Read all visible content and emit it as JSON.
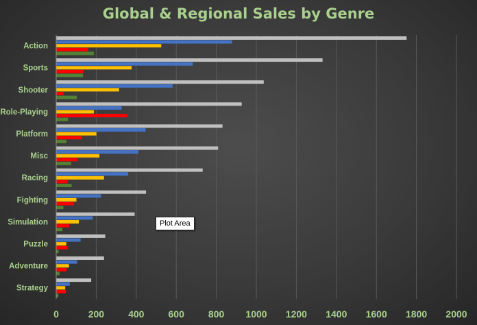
{
  "chart_data": {
    "type": "bar",
    "orientation": "horizontal",
    "title": "Global & Regional Sales by Genre",
    "categories": [
      "Action",
      "Sports",
      "Shooter",
      "Role-Playing",
      "Platform",
      "Misc",
      "Racing",
      "Fighting",
      "Simulation",
      "Puzzle",
      "Adventure",
      "Strategy"
    ],
    "series": [
      {
        "color": "#c0c0c0",
        "values": [
          1751,
          1331,
          1037,
          927,
          831,
          809,
          732,
          449,
          392,
          245,
          239,
          175
        ]
      },
      {
        "color": "#4472c4",
        "values": [
          879,
          683,
          582,
          327,
          447,
          411,
          360,
          224,
          183,
          122,
          105,
          68
        ]
      },
      {
        "color": "#ffc000",
        "values": [
          525,
          377,
          314,
          188,
          201,
          216,
          239,
          101,
          113,
          50,
          64,
          45
        ]
      },
      {
        "color": "#ff0000",
        "values": [
          160,
          136,
          38,
          355,
          130,
          107,
          57,
          88,
          64,
          57,
          52,
          49
        ]
      },
      {
        "color": "#548235",
        "values": [
          188,
          134,
          103,
          59,
          51,
          74,
          77,
          36,
          31,
          12,
          17,
          11
        ]
      }
    ],
    "xlim": [
      0,
      2000
    ],
    "x_ticks": [
      "0",
      "200",
      "400",
      "600",
      "800",
      "1000",
      "1200",
      "1400",
      "1600",
      "1800",
      "2000"
    ],
    "grid": true,
    "legend": "none"
  },
  "colors": {
    "title": "#a9d18e",
    "labels": "#a9d18e",
    "grid": "#5a5a5a"
  },
  "tooltip": {
    "label": "Plot Area"
  }
}
